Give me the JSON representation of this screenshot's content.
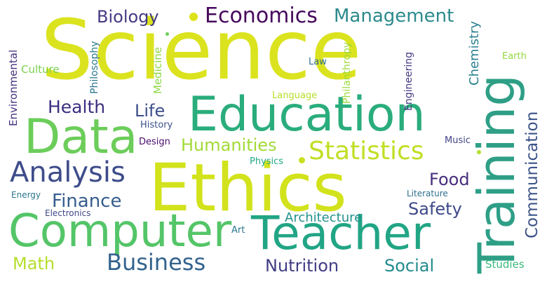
{
  "words": [
    {
      "text": "Science",
      "color": "#dbe31f"
    },
    {
      "text": "Ethics",
      "color": "#d2e21b"
    },
    {
      "text": "Training",
      "color": "#2e9f86"
    },
    {
      "text": "Education",
      "color": "#2aad7c"
    },
    {
      "text": "Data",
      "color": "#6ccd5a"
    },
    {
      "text": "Computer",
      "color": "#54c568"
    },
    {
      "text": "Teacher",
      "color": "#21a585"
    },
    {
      "text": "Analysis",
      "color": "#3e4c8a"
    },
    {
      "text": "Statistics",
      "color": "#c0df25"
    },
    {
      "text": "Business",
      "color": "#33638d"
    },
    {
      "text": "Economics",
      "color": "#46085c"
    },
    {
      "text": "Management",
      "color": "#2c8a8c"
    },
    {
      "text": "Biology",
      "color": "#443a83"
    },
    {
      "text": "Health",
      "color": "#3b2f80"
    },
    {
      "text": "Communication",
      "color": "#3b5288"
    },
    {
      "text": "Humanities",
      "color": "#a2da37"
    },
    {
      "text": "Finance",
      "color": "#365d8d"
    },
    {
      "text": "Nutrition",
      "color": "#413d84"
    },
    {
      "text": "Social",
      "color": "#238b8d"
    },
    {
      "text": "Safety",
      "color": "#3e4989"
    },
    {
      "text": "Food",
      "color": "#472d7b"
    },
    {
      "text": "Life",
      "color": "#3c4f8a"
    },
    {
      "text": "Math",
      "color": "#b5de2b"
    },
    {
      "text": "Chemistry",
      "color": "#277f8e"
    },
    {
      "text": "Architecture",
      "color": "#21918c"
    },
    {
      "text": "Studies",
      "color": "#3ab97b"
    },
    {
      "text": "Environmental",
      "color": "#46327e"
    },
    {
      "text": "Culture",
      "color": "#7ad151"
    },
    {
      "text": "Philosophy",
      "color": "#2a788e"
    },
    {
      "text": "Medicine",
      "color": "#8fd744"
    },
    {
      "text": "Philanthropy",
      "color": "#9dd93b"
    },
    {
      "text": "Engineering",
      "color": "#443983"
    },
    {
      "text": "Law",
      "color": "#2d708e"
    },
    {
      "text": "Earth",
      "color": "#95d840"
    },
    {
      "text": "Language",
      "color": "#b8de29"
    },
    {
      "text": "History",
      "color": "#3b518b"
    },
    {
      "text": "Design",
      "color": "#4a0c6b"
    },
    {
      "text": "Music",
      "color": "#404688"
    },
    {
      "text": "Physics",
      "color": "#22a884"
    },
    {
      "text": "Energy",
      "color": "#2a768e"
    },
    {
      "text": "Electronics",
      "color": "#3f4889"
    },
    {
      "text": "Literature",
      "color": "#2e6e8e"
    },
    {
      "text": "Art",
      "color": "#2a788e"
    }
  ],
  "dots": [
    {
      "color": "#dde318"
    },
    {
      "color": "#c8e020"
    },
    {
      "color": "#b5de2b"
    },
    {
      "color": "#6ccd5a"
    }
  ]
}
